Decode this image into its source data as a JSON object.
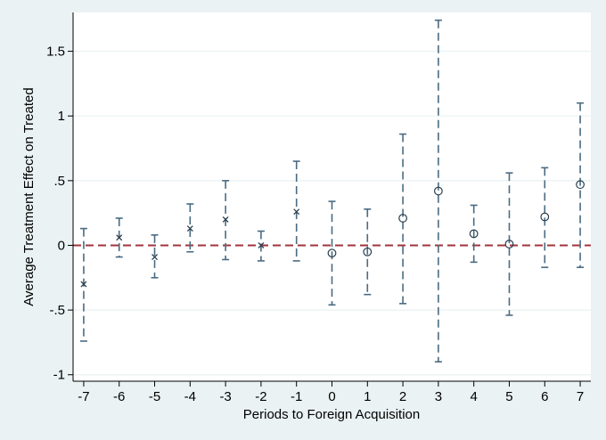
{
  "chart_data": {
    "type": "scatter",
    "title": "",
    "xlabel": "Periods to Foreign Acquisition",
    "ylabel": "Average Treatment Effect on Treated",
    "x_ticks": [
      -7,
      -6,
      -5,
      -4,
      -3,
      -2,
      -1,
      0,
      1,
      2,
      3,
      4,
      5,
      6,
      7
    ],
    "y_ticks": [
      {
        "value": -1,
        "label": "-1"
      },
      {
        "value": -0.5,
        "label": "-.5"
      },
      {
        "value": 0,
        "label": "0"
      },
      {
        "value": 0.5,
        "label": ".5"
      },
      {
        "value": 1,
        "label": "1"
      },
      {
        "value": 1.5,
        "label": "1.5"
      }
    ],
    "xlim": [
      -7.3,
      7.3
    ],
    "ylim": [
      -1.05,
      1.8
    ],
    "grid": "horizontal",
    "reference_line": {
      "y": 0,
      "color": "#a0353c",
      "style": "dashed"
    },
    "ci_color": "#4a6b82",
    "marker_color": "#2a3e4e",
    "series": [
      {
        "marker": "x",
        "points": [
          {
            "x": -7,
            "y": -0.3,
            "lo": -0.74,
            "hi": 0.13
          },
          {
            "x": -6,
            "y": 0.06,
            "lo": -0.09,
            "hi": 0.21
          },
          {
            "x": -5,
            "y": -0.09,
            "lo": -0.25,
            "hi": 0.08
          },
          {
            "x": -4,
            "y": 0.13,
            "lo": -0.05,
            "hi": 0.32
          },
          {
            "x": -3,
            "y": 0.2,
            "lo": -0.11,
            "hi": 0.5
          },
          {
            "x": -2,
            "y": 0.0,
            "lo": -0.12,
            "hi": 0.11
          },
          {
            "x": -1,
            "y": 0.26,
            "lo": -0.12,
            "hi": 0.65
          }
        ]
      },
      {
        "marker": "circle",
        "points": [
          {
            "x": 0,
            "y": -0.06,
            "lo": -0.46,
            "hi": 0.34
          },
          {
            "x": 1,
            "y": -0.05,
            "lo": -0.38,
            "hi": 0.28
          },
          {
            "x": 2,
            "y": 0.21,
            "lo": -0.45,
            "hi": 0.86
          },
          {
            "x": 3,
            "y": 0.42,
            "lo": -0.9,
            "hi": 1.74
          },
          {
            "x": 4,
            "y": 0.09,
            "lo": -0.13,
            "hi": 0.31
          },
          {
            "x": 5,
            "y": 0.01,
            "lo": -0.54,
            "hi": 0.56
          },
          {
            "x": 6,
            "y": 0.22,
            "lo": -0.17,
            "hi": 0.6
          },
          {
            "x": 7,
            "y": 0.47,
            "lo": -0.17,
            "hi": 1.1
          }
        ]
      }
    ]
  }
}
